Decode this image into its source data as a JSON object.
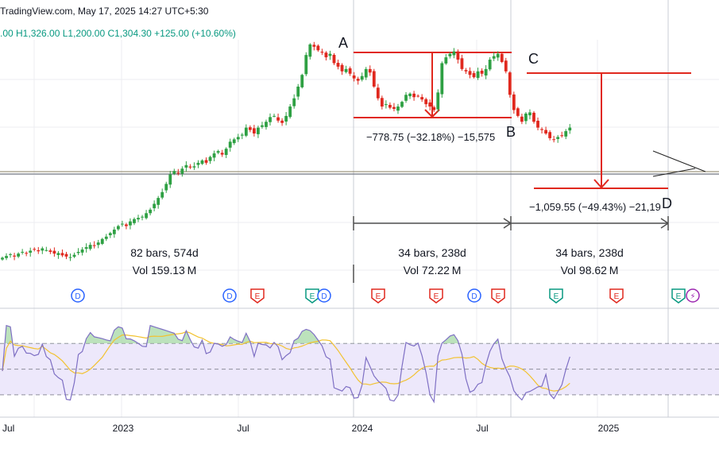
{
  "header": {
    "watermark": "TradingView.com, May 17, 2025 14:27 UTC+5:30",
    "ohlc": ".00 H1,326.00 L1,200.00 C1,304.30 +125.00 (+10.60%)"
  },
  "colors": {
    "up": "#2ea043",
    "down": "#e0281e",
    "drawing": "#e0281e",
    "range": "#505050",
    "rsi_line": "#7e6fc4",
    "rsi_ma": "#f2c230",
    "rsi_band": "#ede8fb",
    "grid": "#eceef2",
    "separator": "#c8ccd4"
  },
  "annotations": {
    "point_labels": [
      "A",
      "B",
      "C",
      "D"
    ],
    "measure_ab": "−778.75 (−32.18%) −15,575",
    "measure_cd": "−1,059.55 (−49.43%) −21,19",
    "ranges": [
      {
        "bars": "82 bars, 574d",
        "vol": "Vol 159.13 M"
      },
      {
        "bars": "34 bars, 238d",
        "vol": "Vol 72.22 M"
      },
      {
        "bars": "34 bars, 238d",
        "vol": "Vol 98.62 M"
      }
    ]
  },
  "events": [
    "D",
    "D",
    "E",
    "E",
    "D",
    "E",
    "E",
    "D",
    "E",
    "E",
    "E",
    "E",
    "⚡"
  ],
  "chart_data": {
    "type": "candlestick",
    "x_tick_labels": [
      "Jul",
      "2023",
      "Jul",
      "2024",
      "Jul",
      "2025"
    ],
    "note": "weekly candles, approximate closes",
    "closes": [
      590,
      605,
      620,
      600,
      625,
      640,
      630,
      650,
      660,
      645,
      670,
      655,
      640,
      625,
      630,
      610,
      600,
      595,
      615,
      640,
      660,
      680,
      700,
      690,
      720,
      750,
      770,
      800,
      830,
      860,
      880,
      860,
      900,
      920,
      930,
      940,
      970,
      1000,
      1050,
      1100,
      1150,
      1220,
      1300,
      1330,
      1310,
      1350,
      1380,
      1360,
      1370,
      1400,
      1420,
      1400,
      1450,
      1480,
      1500,
      1470,
      1520,
      1580,
      1600,
      1620,
      1640,
      1700,
      1680,
      1650,
      1700,
      1720,
      1750,
      1790,
      1800,
      1760,
      1740,
      1800,
      1880,
      1950,
      2050,
      2150,
      2320,
      2410,
      2390,
      2360,
      2340,
      2300,
      2330,
      2250,
      2220,
      2180,
      2200,
      2160,
      2120,
      2100,
      2140,
      2200,
      2170,
      2050,
      1950,
      1880,
      1900,
      1870,
      1860,
      1880,
      1920,
      1980,
      1990,
      1960,
      1970,
      1940,
      1900,
      1880,
      1850,
      2000,
      2250,
      2300,
      2330,
      2350,
      2280,
      2200,
      2180,
      2150,
      2130,
      2180,
      2160,
      2200,
      2280,
      2310,
      2330,
      2260,
      2180,
      1980,
      1850,
      1800,
      1750,
      1820,
      1830,
      1750,
      1700,
      1680,
      1650,
      1610,
      1600,
      1620,
      1630,
      1670,
      1700
    ],
    "rsi_bands": [
      30,
      50,
      70
    ],
    "ylim": [
      450,
      2450
    ]
  }
}
